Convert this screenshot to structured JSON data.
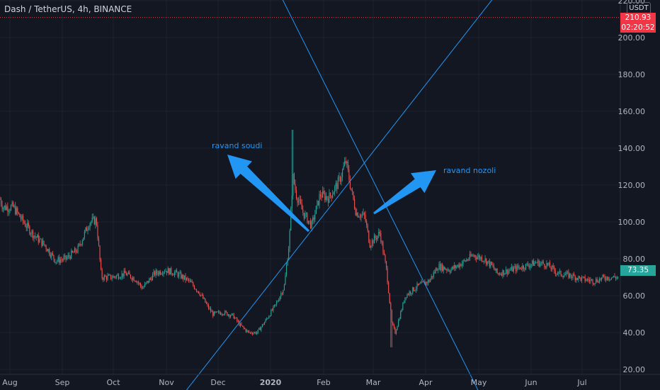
{
  "header": {
    "symbol_title": "Dash / TetherUS, 4h, BINANCE"
  },
  "price_axis": {
    "currency": "USDT"
  },
  "labels": {
    "current_price": "210.93",
    "countdown": "02:20:52",
    "last_price": "73.35"
  },
  "annotations": {
    "uptrend_label": "ravand soudi",
    "downtrend_label": "ravand nozoli"
  },
  "colors": {
    "background": "#131722",
    "up": "#26a69a",
    "down": "#ef5350",
    "drawing": "#2196f3",
    "price_line": "#f23645",
    "axis_text": "#b2b5be",
    "grid": "#1e222d"
  },
  "chart_data": {
    "type": "candlestick",
    "title": "Dash / TetherUS, 4h, BINANCE",
    "xlabel": "",
    "ylabel": "",
    "ylim": [
      10,
      225
    ],
    "x_ticks": [
      "Aug",
      "Sep",
      "Oct",
      "Nov",
      "Dec",
      "2020",
      "Feb",
      "Mar",
      "Apr",
      "May",
      "Jun",
      "Jul"
    ],
    "y_ticks": [
      20,
      40,
      60,
      80,
      100,
      120,
      140,
      160,
      180,
      200,
      220
    ],
    "y_tick_labels": [
      "20.00",
      "40.00",
      "60.00",
      "80.00",
      "100.00",
      "120.00",
      "140.00",
      "160.00",
      "180.00",
      "200.00",
      "220.00"
    ],
    "grid": true,
    "current_price_line": 210.93,
    "last_price": 73.35,
    "price_path": [
      [
        "2019-07-25",
        115
      ],
      [
        "2019-07-28",
        108
      ],
      [
        "2019-08-03",
        108
      ],
      [
        "2019-08-09",
        100
      ],
      [
        "2019-08-15",
        93
      ],
      [
        "2019-08-22",
        87
      ],
      [
        "2019-08-28",
        79
      ],
      [
        "2019-09-03",
        80
      ],
      [
        "2019-09-10",
        85
      ],
      [
        "2019-09-17",
        100
      ],
      [
        "2019-09-21",
        101
      ],
      [
        "2019-09-24",
        70
      ],
      [
        "2019-09-30",
        70
      ],
      [
        "2019-10-08",
        72
      ],
      [
        "2019-10-14",
        69
      ],
      [
        "2019-10-18",
        64
      ],
      [
        "2019-10-25",
        72
      ],
      [
        "2019-10-31",
        74
      ],
      [
        "2019-11-07",
        72
      ],
      [
        "2019-11-14",
        68
      ],
      [
        "2019-11-20",
        62
      ],
      [
        "2019-11-25",
        54
      ],
      [
        "2019-11-28",
        50
      ],
      [
        "2019-12-04",
        51
      ],
      [
        "2019-12-10",
        49
      ],
      [
        "2019-12-14",
        44
      ],
      [
        "2019-12-19",
        40
      ],
      [
        "2019-12-24",
        40
      ],
      [
        "2019-12-28",
        45
      ],
      [
        "2020-01-04",
        55
      ],
      [
        "2020-01-09",
        65
      ],
      [
        "2020-01-12",
        90
      ],
      [
        "2020-01-14",
        125
      ],
      [
        "2020-01-16",
        115
      ],
      [
        "2020-01-20",
        105
      ],
      [
        "2020-01-25",
        98
      ],
      [
        "2020-01-30",
        115
      ],
      [
        "2020-02-04",
        113
      ],
      [
        "2020-02-10",
        122
      ],
      [
        "2020-02-14",
        133
      ],
      [
        "2020-02-17",
        118
      ],
      [
        "2020-02-20",
        105
      ],
      [
        "2020-02-25",
        103
      ],
      [
        "2020-02-28",
        88
      ],
      [
        "2020-03-05",
        94
      ],
      [
        "2020-03-09",
        73
      ],
      [
        "2020-03-12",
        45
      ],
      [
        "2020-03-14",
        40
      ],
      [
        "2020-03-20",
        60
      ],
      [
        "2020-03-27",
        65
      ],
      [
        "2020-04-03",
        68
      ],
      [
        "2020-04-08",
        76
      ],
      [
        "2020-04-15",
        74
      ],
      [
        "2020-04-22",
        78
      ],
      [
        "2020-04-28",
        82
      ],
      [
        "2020-05-04",
        80
      ],
      [
        "2020-05-09",
        76
      ],
      [
        "2020-05-12",
        72
      ],
      [
        "2020-05-20",
        74
      ],
      [
        "2020-05-28",
        76
      ],
      [
        "2020-06-04",
        78
      ],
      [
        "2020-06-10",
        77
      ],
      [
        "2020-06-17",
        72
      ],
      [
        "2020-06-24",
        71
      ],
      [
        "2020-07-01",
        69
      ],
      [
        "2020-07-08",
        68
      ],
      [
        "2020-07-15",
        70
      ],
      [
        "2020-07-22",
        70
      ],
      [
        "2020-07-26",
        73.35
      ]
    ],
    "extreme_wicks": [
      [
        "2020-01-14",
        150
      ],
      [
        "2020-03-12",
        32
      ]
    ],
    "trend_lines": [
      {
        "name": "ravand soudi",
        "points": [
          [
            "2019-11-12",
            8
          ],
          [
            "2020-05-17",
            230
          ]
        ]
      },
      {
        "name": "ravand nozoli",
        "points": [
          [
            "2020-01-03",
            230
          ],
          [
            "2020-05-01",
            8
          ]
        ]
      }
    ]
  }
}
